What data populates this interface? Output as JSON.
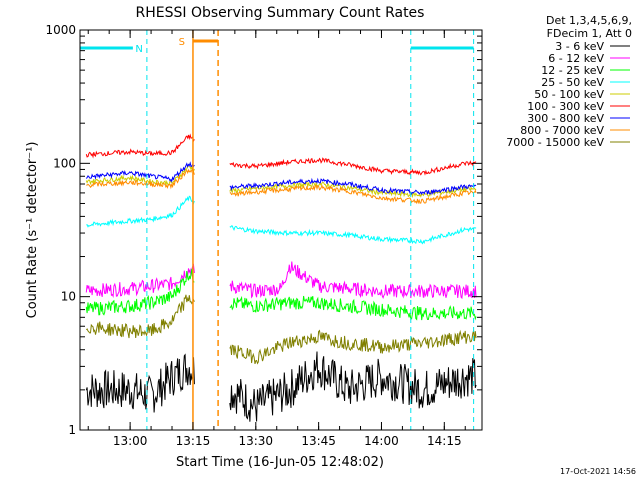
{
  "chart_data": {
    "type": "line",
    "title": "RHESSI Observing Summary Count Rates",
    "xlabel": "Start Time (16-Jun-05 12:48:02)",
    "ylabel": "Count Rate (s⁻¹ detector⁻¹)",
    "y_scale": "log",
    "ylim": [
      1,
      1000
    ],
    "xlim": [
      "12:48:02",
      "14:24:00"
    ],
    "x_ticks": [
      "13:00",
      "13:15",
      "13:30",
      "13:45",
      "14:00",
      "14:15"
    ],
    "y_ticks": [
      "1",
      "10",
      "100",
      "1000"
    ],
    "header_lines": [
      "Det 1,3,4,5,6,9,",
      "FDecim 1, Att 0"
    ],
    "footer_timestamp": "17-Oct-2021 14:56",
    "gap": [
      "13:17",
      "13:23"
    ],
    "night_markers": [
      "13:04",
      "14:07",
      "14:22"
    ],
    "saa_markers": [
      "13:15",
      "13:21"
    ],
    "bar_labels": [
      {
        "text": "N",
        "color": "#00e5ee"
      },
      {
        "text": "S",
        "color": "#ff8c00"
      }
    ],
    "series": [
      {
        "name": "3 - 6 keV",
        "color": "#000000",
        "x": [
          "12:48",
          "13:00",
          "13:05",
          "13:10",
          "13:14",
          "13:24",
          "13:30",
          "13:38",
          "13:45",
          "13:52",
          "14:00",
          "14:10",
          "14:20"
        ],
        "y": [
          2,
          2,
          1.8,
          2.5,
          3,
          2,
          1.5,
          2,
          3,
          2,
          2.5,
          2,
          2.5
        ]
      },
      {
        "name": "6 - 12 keV",
        "color": "#ff00ff",
        "x": [
          "12:48",
          "13:00",
          "13:05",
          "13:10",
          "13:14",
          "13:24",
          "13:30",
          "13:36",
          "13:38",
          "13:45",
          "13:52",
          "14:00",
          "14:10",
          "14:20"
        ],
        "y": [
          11,
          11.5,
          12,
          12.5,
          16,
          12,
          11,
          11.5,
          17,
          12,
          11.5,
          11,
          11,
          11
        ]
      },
      {
        "name": "12 - 25 keV",
        "color": "#00ff00",
        "x": [
          "12:48",
          "13:00",
          "13:05",
          "13:10",
          "13:14",
          "13:24",
          "13:30",
          "13:38",
          "13:45",
          "13:52",
          "14:00",
          "14:10",
          "14:20"
        ],
        "y": [
          8,
          8.5,
          9,
          10,
          15,
          9,
          8.5,
          9,
          9,
          8.5,
          8,
          7.5,
          7.5
        ]
      },
      {
        "name": "25 - 50 keV",
        "color": "#00ffff",
        "x": [
          "12:48",
          "13:00",
          "13:05",
          "13:10",
          "13:14",
          "13:24",
          "13:30",
          "13:38",
          "13:45",
          "13:52",
          "14:00",
          "14:10",
          "14:20"
        ],
        "y": [
          34,
          37,
          38,
          41,
          55,
          33,
          31,
          30,
          30,
          29,
          27,
          26,
          32
        ]
      },
      {
        "name": "50 - 100 keV",
        "color": "#cccc00",
        "x": [
          "12:48",
          "13:00",
          "13:05",
          "13:10",
          "13:14",
          "13:24",
          "13:30",
          "13:38",
          "13:45",
          "13:52",
          "14:00",
          "14:10",
          "14:20"
        ],
        "y": [
          72,
          78,
          73,
          71,
          95,
          62,
          65,
          68,
          70,
          66,
          60,
          58,
          64
        ]
      },
      {
        "name": "100 - 300 keV",
        "color": "#ff0000",
        "x": [
          "12:48",
          "13:00",
          "13:05",
          "13:10",
          "13:14",
          "13:24",
          "13:30",
          "13:38",
          "13:45",
          "13:52",
          "14:00",
          "14:10",
          "14:20"
        ],
        "y": [
          115,
          122,
          118,
          120,
          160,
          98,
          95,
          102,
          106,
          98,
          88,
          85,
          100
        ]
      },
      {
        "name": "300 - 800 keV",
        "color": "#0000ff",
        "x": [
          "12:48",
          "13:00",
          "13:05",
          "13:10",
          "13:14",
          "13:24",
          "13:30",
          "13:38",
          "13:45",
          "13:52",
          "14:00",
          "14:10",
          "14:20"
        ],
        "y": [
          78,
          85,
          80,
          76,
          100,
          66,
          68,
          72,
          74,
          70,
          63,
          60,
          67
        ]
      },
      {
        "name": "800 - 7000 keV",
        "color": "#ff8c00",
        "x": [
          "12:48",
          "13:00",
          "13:05",
          "13:10",
          "13:14",
          "13:24",
          "13:30",
          "13:38",
          "13:45",
          "13:52",
          "14:00",
          "14:10",
          "14:20"
        ],
        "y": [
          68,
          72,
          70,
          68,
          90,
          58,
          61,
          64,
          66,
          62,
          55,
          52,
          60
        ]
      },
      {
        "name": "7000 - 15000 keV",
        "color": "#808000",
        "x": [
          "12:48",
          "13:00",
          "13:05",
          "13:10",
          "13:14",
          "13:24",
          "13:30",
          "13:38",
          "13:45",
          "13:52",
          "14:00",
          "14:10",
          "14:20"
        ],
        "y": [
          6,
          5.5,
          5.5,
          6.5,
          10,
          4,
          3.5,
          4.5,
          5,
          4.5,
          4.2,
          4.5,
          5
        ]
      }
    ]
  }
}
